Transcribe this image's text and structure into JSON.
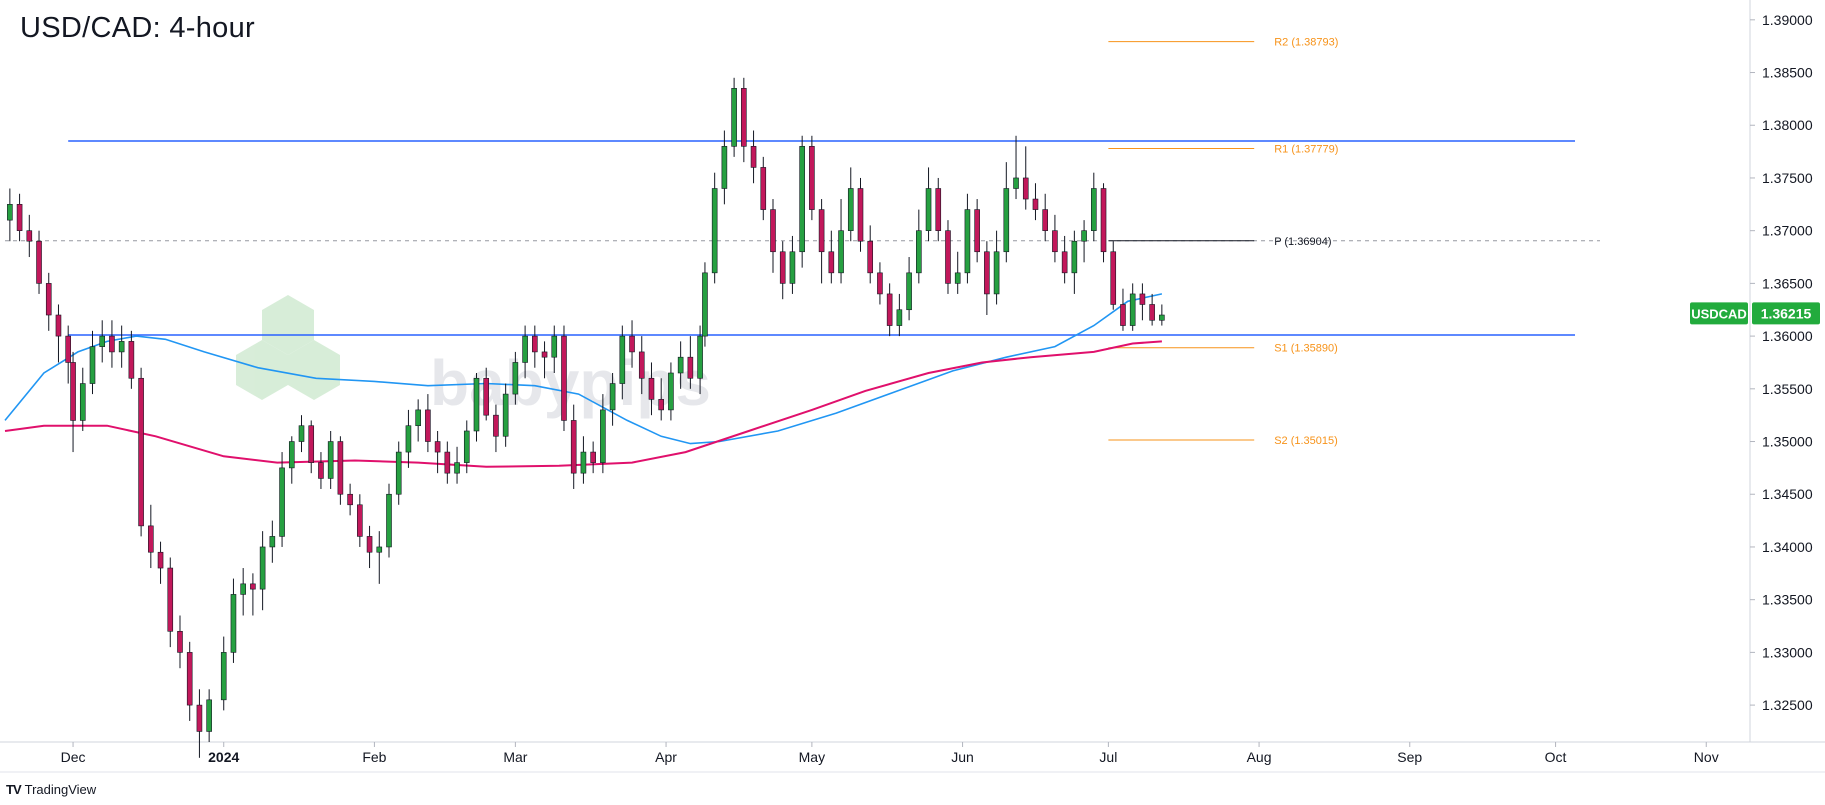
{
  "chart_data": {
    "type": "candlestick",
    "title": "USD/CAD: 4-hour",
    "symbol": "USDCAD",
    "last_price": "1.36215",
    "watermark": "babypips",
    "branding": "TradingView",
    "x_tick_labels": [
      "Dec",
      "2024",
      "Feb",
      "Mar",
      "Apr",
      "May",
      "Jun",
      "Jul",
      "Aug",
      "Sep",
      "Oct",
      "Nov"
    ],
    "y_tick_labels": [
      "1.39000",
      "1.38500",
      "1.38000",
      "1.37500",
      "1.37000",
      "1.36500",
      "1.36000",
      "1.35500",
      "1.35000",
      "1.34500",
      "1.34000",
      "1.33500",
      "1.33000",
      "1.32500"
    ],
    "y_ticks": [
      1.39,
      1.385,
      1.38,
      1.375,
      1.37,
      1.365,
      1.36,
      1.355,
      1.35,
      1.345,
      1.34,
      1.335,
      1.33,
      1.325
    ],
    "ylim": [
      1.3215,
      1.3915
    ],
    "months": [
      {
        "label": "Dec",
        "date": "2023-12-01"
      },
      {
        "label": "2024",
        "date": "2024-01-01"
      },
      {
        "label": "Feb",
        "date": "2024-02-01"
      },
      {
        "label": "Mar",
        "date": "2024-03-01"
      },
      {
        "label": "Apr",
        "date": "2024-04-01"
      },
      {
        "label": "May",
        "date": "2024-05-01"
      },
      {
        "label": "Jun",
        "date": "2024-06-01"
      },
      {
        "label": "Jul",
        "date": "2024-07-01"
      },
      {
        "label": "Aug",
        "date": "2024-08-01"
      },
      {
        "label": "Sep",
        "date": "2024-09-01"
      },
      {
        "label": "Oct",
        "date": "2024-10-01"
      },
      {
        "label": "Nov",
        "date": "2024-11-01"
      }
    ],
    "xlim": [
      "2023-11-17",
      "2024-11-10"
    ],
    "horizontal_lines": [
      {
        "name": "resistance",
        "value": 1.3785,
        "color": "#2962ff",
        "start": "2023-11-30",
        "end": "2024-10-05"
      },
      {
        "name": "support",
        "value": 1.3601,
        "color": "#2962ff",
        "start": "2023-11-30",
        "end": "2024-10-05"
      }
    ],
    "pivot_levels": [
      {
        "label": "R2 (1.38793)",
        "value": 1.38793,
        "color": "#f7931a"
      },
      {
        "label": "R1 (1.37779)",
        "value": 1.37779,
        "color": "#f7931a"
      },
      {
        "label": "P (1.36904)",
        "value": 1.36904,
        "color": "#131722",
        "dashed_extension": true
      },
      {
        "label": "S1 (1.35890)",
        "value": 1.3589,
        "color": "#f7931a"
      },
      {
        "label": "S2 (1.35015)",
        "value": 1.35015,
        "color": "#f7931a"
      }
    ],
    "pivot_span": {
      "start": "2024-07-01",
      "end": "2024-07-31"
    },
    "colors": {
      "up": "#26a041",
      "down": "#c2185b",
      "ma_fast": "#2196f3",
      "ma_slow": "#e0106c",
      "price_badge": "#22ab3d"
    },
    "moving_averages": [
      {
        "color": "#2196f3",
        "points": [
          [
            "2023-11-17",
            1.352
          ],
          [
            "2023-11-25",
            1.3565
          ],
          [
            "2023-12-02",
            1.3585
          ],
          [
            "2023-12-08",
            1.3595
          ],
          [
            "2023-12-14",
            1.36
          ],
          [
            "2023-12-20",
            1.3597
          ],
          [
            "2023-12-28",
            1.3585
          ],
          [
            "2024-01-08",
            1.357
          ],
          [
            "2024-01-20",
            1.356
          ],
          [
            "2024-02-01",
            1.3557
          ],
          [
            "2024-02-12",
            1.3553
          ],
          [
            "2024-02-24",
            1.3555
          ],
          [
            "2024-03-05",
            1.3553
          ],
          [
            "2024-03-14",
            1.3545
          ],
          [
            "2024-03-24",
            1.352
          ],
          [
            "2024-03-31",
            1.3505
          ],
          [
            "2024-04-06",
            1.3498
          ],
          [
            "2024-04-12",
            1.35
          ],
          [
            "2024-04-24",
            1.351
          ],
          [
            "2024-05-06",
            1.3527
          ],
          [
            "2024-05-18",
            1.3547
          ],
          [
            "2024-05-30",
            1.3567
          ],
          [
            "2024-06-10",
            1.358
          ],
          [
            "2024-06-20",
            1.359
          ],
          [
            "2024-06-28",
            1.361
          ],
          [
            "2024-07-05",
            1.3633
          ],
          [
            "2024-07-10",
            1.3638
          ],
          [
            "2024-07-12",
            1.364
          ]
        ]
      },
      {
        "color": "#e0106c",
        "points": [
          [
            "2023-11-17",
            1.351
          ],
          [
            "2023-11-25",
            1.3515
          ],
          [
            "2023-12-08",
            1.3515
          ],
          [
            "2023-12-18",
            1.3505
          ],
          [
            "2024-01-01",
            1.3486
          ],
          [
            "2024-01-12",
            1.348
          ],
          [
            "2024-01-28",
            1.3482
          ],
          [
            "2024-02-10",
            1.348
          ],
          [
            "2024-02-24",
            1.3476
          ],
          [
            "2024-03-10",
            1.3477
          ],
          [
            "2024-03-25",
            1.348
          ],
          [
            "2024-04-05",
            1.349
          ],
          [
            "2024-04-18",
            1.351
          ],
          [
            "2024-05-01",
            1.353
          ],
          [
            "2024-05-12",
            1.3548
          ],
          [
            "2024-05-25",
            1.3565
          ],
          [
            "2024-06-05",
            1.3575
          ],
          [
            "2024-06-15",
            1.358
          ],
          [
            "2024-06-28",
            1.3585
          ],
          [
            "2024-07-06",
            1.3593
          ],
          [
            "2024-07-12",
            1.3595
          ]
        ]
      }
    ],
    "candles": [
      [
        "2023-11-18",
        1.371,
        1.3725,
        1.369,
        1.374
      ],
      [
        "2023-11-20",
        1.3725,
        1.37,
        1.369,
        1.3735
      ],
      [
        "2023-11-22",
        1.37,
        1.369,
        1.3675,
        1.3715
      ],
      [
        "2023-11-24",
        1.369,
        1.365,
        1.364,
        1.37
      ],
      [
        "2023-11-26",
        1.365,
        1.362,
        1.3605,
        1.366
      ],
      [
        "2023-11-28",
        1.362,
        1.36,
        1.3575,
        1.363
      ],
      [
        "2023-11-30",
        1.36,
        1.3575,
        1.3555,
        1.361
      ],
      [
        "2023-12-01",
        1.3575,
        1.352,
        1.349,
        1.3585
      ],
      [
        "2023-12-03",
        1.352,
        1.3555,
        1.351,
        1.357
      ],
      [
        "2023-12-05",
        1.3555,
        1.359,
        1.3545,
        1.3605
      ],
      [
        "2023-12-07",
        1.359,
        1.36,
        1.3575,
        1.3615
      ],
      [
        "2023-12-09",
        1.36,
        1.3585,
        1.357,
        1.3615
      ],
      [
        "2023-12-11",
        1.3585,
        1.3595,
        1.357,
        1.361
      ],
      [
        "2023-12-13",
        1.3595,
        1.356,
        1.355,
        1.3605
      ],
      [
        "2023-12-15",
        1.356,
        1.342,
        1.341,
        1.357
      ],
      [
        "2023-12-17",
        1.342,
        1.3395,
        1.338,
        1.344
      ],
      [
        "2023-12-19",
        1.3395,
        1.338,
        1.3365,
        1.3405
      ],
      [
        "2023-12-21",
        1.338,
        1.332,
        1.3305,
        1.339
      ],
      [
        "2023-12-23",
        1.332,
        1.33,
        1.3285,
        1.3335
      ],
      [
        "2023-12-25",
        1.33,
        1.325,
        1.3235,
        1.331
      ],
      [
        "2023-12-27",
        1.325,
        1.3225,
        1.32,
        1.3265
      ],
      [
        "2023-12-29",
        1.3225,
        1.3255,
        1.3215,
        1.3265
      ],
      [
        "2024-01-01",
        1.3255,
        1.33,
        1.3245,
        1.3315
      ],
      [
        "2024-01-03",
        1.33,
        1.3355,
        1.329,
        1.337
      ],
      [
        "2024-01-05",
        1.3355,
        1.3365,
        1.3335,
        1.338
      ],
      [
        "2024-01-07",
        1.3365,
        1.336,
        1.3335,
        1.3375
      ],
      [
        "2024-01-09",
        1.336,
        1.34,
        1.334,
        1.3415
      ],
      [
        "2024-01-11",
        1.34,
        1.341,
        1.3385,
        1.3425
      ],
      [
        "2024-01-13",
        1.341,
        1.3475,
        1.34,
        1.349
      ],
      [
        "2024-01-15",
        1.3475,
        1.35,
        1.346,
        1.3505
      ],
      [
        "2024-01-17",
        1.35,
        1.3515,
        1.349,
        1.3525
      ],
      [
        "2024-01-19",
        1.3515,
        1.348,
        1.347,
        1.352
      ],
      [
        "2024-01-21",
        1.348,
        1.3465,
        1.3455,
        1.349
      ],
      [
        "2024-01-23",
        1.3465,
        1.35,
        1.3455,
        1.351
      ],
      [
        "2024-01-25",
        1.35,
        1.345,
        1.344,
        1.3505
      ],
      [
        "2024-01-27",
        1.345,
        1.344,
        1.343,
        1.346
      ],
      [
        "2024-01-29",
        1.344,
        1.341,
        1.34,
        1.345
      ],
      [
        "2024-01-31",
        1.341,
        1.3395,
        1.338,
        1.342
      ],
      [
        "2024-02-02",
        1.3395,
        1.34,
        1.3365,
        1.3415
      ],
      [
        "2024-02-04",
        1.34,
        1.345,
        1.339,
        1.346
      ],
      [
        "2024-02-06",
        1.345,
        1.349,
        1.344,
        1.35
      ],
      [
        "2024-02-08",
        1.349,
        1.3515,
        1.3475,
        1.353
      ],
      [
        "2024-02-10",
        1.3515,
        1.353,
        1.35,
        1.354
      ],
      [
        "2024-02-12",
        1.353,
        1.35,
        1.349,
        1.3545
      ],
      [
        "2024-02-14",
        1.35,
        1.349,
        1.347,
        1.351
      ],
      [
        "2024-02-16",
        1.349,
        1.347,
        1.346,
        1.35
      ],
      [
        "2024-02-18",
        1.347,
        1.348,
        1.346,
        1.3495
      ],
      [
        "2024-02-20",
        1.348,
        1.351,
        1.347,
        1.352
      ],
      [
        "2024-02-22",
        1.351,
        1.356,
        1.35,
        1.3565
      ],
      [
        "2024-02-24",
        1.356,
        1.3525,
        1.352,
        1.357
      ],
      [
        "2024-02-26",
        1.3525,
        1.3505,
        1.349,
        1.3535
      ],
      [
        "2024-02-28",
        1.3505,
        1.3545,
        1.3495,
        1.3555
      ],
      [
        "2024-03-01",
        1.3545,
        1.3575,
        1.3535,
        1.3585
      ],
      [
        "2024-03-03",
        1.3575,
        1.36,
        1.356,
        1.361
      ],
      [
        "2024-03-05",
        1.36,
        1.3585,
        1.357,
        1.361
      ],
      [
        "2024-03-07",
        1.3585,
        1.358,
        1.356,
        1.3595
      ],
      [
        "2024-03-09",
        1.358,
        1.36,
        1.3565,
        1.361
      ],
      [
        "2024-03-11",
        1.36,
        1.352,
        1.351,
        1.361
      ],
      [
        "2024-03-13",
        1.352,
        1.347,
        1.3455,
        1.3535
      ],
      [
        "2024-03-15",
        1.347,
        1.349,
        1.346,
        1.3505
      ],
      [
        "2024-03-17",
        1.349,
        1.348,
        1.347,
        1.35
      ],
      [
        "2024-03-19",
        1.348,
        1.353,
        1.347,
        1.3545
      ],
      [
        "2024-03-21",
        1.353,
        1.3555,
        1.3515,
        1.3565
      ],
      [
        "2024-03-23",
        1.3555,
        1.36,
        1.354,
        1.361
      ],
      [
        "2024-03-25",
        1.36,
        1.3585,
        1.357,
        1.3615
      ],
      [
        "2024-03-27",
        1.3585,
        1.356,
        1.3545,
        1.36
      ],
      [
        "2024-03-29",
        1.356,
        1.354,
        1.3525,
        1.3575
      ],
      [
        "2024-03-31",
        1.354,
        1.353,
        1.352,
        1.356
      ],
      [
        "2024-04-02",
        1.353,
        1.3565,
        1.352,
        1.3575
      ],
      [
        "2024-04-04",
        1.3565,
        1.358,
        1.355,
        1.3595
      ],
      [
        "2024-04-06",
        1.358,
        1.356,
        1.355,
        1.36
      ],
      [
        "2024-04-08",
        1.356,
        1.36,
        1.3545,
        1.361
      ],
      [
        "2024-04-09",
        1.36,
        1.366,
        1.359,
        1.367
      ],
      [
        "2024-04-11",
        1.366,
        1.374,
        1.365,
        1.3755
      ],
      [
        "2024-04-13",
        1.374,
        1.378,
        1.3725,
        1.3795
      ],
      [
        "2024-04-15",
        1.378,
        1.3835,
        1.377,
        1.3845
      ],
      [
        "2024-04-17",
        1.3835,
        1.378,
        1.3765,
        1.3845
      ],
      [
        "2024-04-19",
        1.378,
        1.376,
        1.3745,
        1.3795
      ],
      [
        "2024-04-21",
        1.376,
        1.372,
        1.371,
        1.377
      ],
      [
        "2024-04-23",
        1.372,
        1.368,
        1.366,
        1.373
      ],
      [
        "2024-04-25",
        1.368,
        1.365,
        1.3635,
        1.369
      ],
      [
        "2024-04-27",
        1.365,
        1.368,
        1.364,
        1.3695
      ],
      [
        "2024-04-29",
        1.368,
        1.378,
        1.3665,
        1.379
      ],
      [
        "2024-05-01",
        1.378,
        1.372,
        1.371,
        1.379
      ],
      [
        "2024-05-03",
        1.372,
        1.368,
        1.365,
        1.373
      ],
      [
        "2024-05-05",
        1.368,
        1.366,
        1.365,
        1.37
      ],
      [
        "2024-05-07",
        1.366,
        1.37,
        1.365,
        1.373
      ],
      [
        "2024-05-09",
        1.37,
        1.374,
        1.369,
        1.376
      ],
      [
        "2024-05-11",
        1.374,
        1.369,
        1.368,
        1.375
      ],
      [
        "2024-05-13",
        1.369,
        1.366,
        1.365,
        1.3705
      ],
      [
        "2024-05-15",
        1.366,
        1.364,
        1.363,
        1.367
      ],
      [
        "2024-05-17",
        1.364,
        1.361,
        1.36,
        1.365
      ],
      [
        "2024-05-19",
        1.361,
        1.3625,
        1.36,
        1.364
      ],
      [
        "2024-05-21",
        1.3625,
        1.366,
        1.3615,
        1.3675
      ],
      [
        "2024-05-23",
        1.366,
        1.37,
        1.365,
        1.372
      ],
      [
        "2024-05-25",
        1.37,
        1.374,
        1.369,
        1.376
      ],
      [
        "2024-05-27",
        1.374,
        1.37,
        1.369,
        1.375
      ],
      [
        "2024-05-29",
        1.37,
        1.365,
        1.364,
        1.371
      ],
      [
        "2024-05-31",
        1.365,
        1.366,
        1.364,
        1.368
      ],
      [
        "2024-06-02",
        1.366,
        1.372,
        1.365,
        1.3735
      ],
      [
        "2024-06-04",
        1.372,
        1.368,
        1.367,
        1.373
      ],
      [
        "2024-06-06",
        1.368,
        1.364,
        1.362,
        1.369
      ],
      [
        "2024-06-08",
        1.364,
        1.368,
        1.363,
        1.37
      ],
      [
        "2024-06-10",
        1.368,
        1.374,
        1.367,
        1.3765
      ],
      [
        "2024-06-12",
        1.374,
        1.375,
        1.373,
        1.379
      ],
      [
        "2024-06-14",
        1.375,
        1.373,
        1.372,
        1.378
      ],
      [
        "2024-06-16",
        1.373,
        1.372,
        1.371,
        1.3745
      ],
      [
        "2024-06-18",
        1.372,
        1.37,
        1.369,
        1.3735
      ],
      [
        "2024-06-20",
        1.37,
        1.368,
        1.367,
        1.3715
      ],
      [
        "2024-06-22",
        1.368,
        1.366,
        1.365,
        1.3695
      ],
      [
        "2024-06-24",
        1.366,
        1.369,
        1.364,
        1.37
      ],
      [
        "2024-06-26",
        1.369,
        1.37,
        1.367,
        1.371
      ],
      [
        "2024-06-28",
        1.37,
        1.374,
        1.369,
        1.3755
      ],
      [
        "2024-06-30",
        1.374,
        1.368,
        1.367,
        1.3745
      ],
      [
        "2024-07-02",
        1.368,
        1.363,
        1.3625,
        1.369
      ],
      [
        "2024-07-04",
        1.363,
        1.361,
        1.3605,
        1.3645
      ],
      [
        "2024-07-06",
        1.361,
        1.364,
        1.3605,
        1.365
      ],
      [
        "2024-07-08",
        1.364,
        1.363,
        1.3615,
        1.365
      ],
      [
        "2024-07-10",
        1.363,
        1.3615,
        1.361,
        1.364
      ],
      [
        "2024-07-12",
        1.3615,
        1.362,
        1.361,
        1.363
      ]
    ]
  }
}
